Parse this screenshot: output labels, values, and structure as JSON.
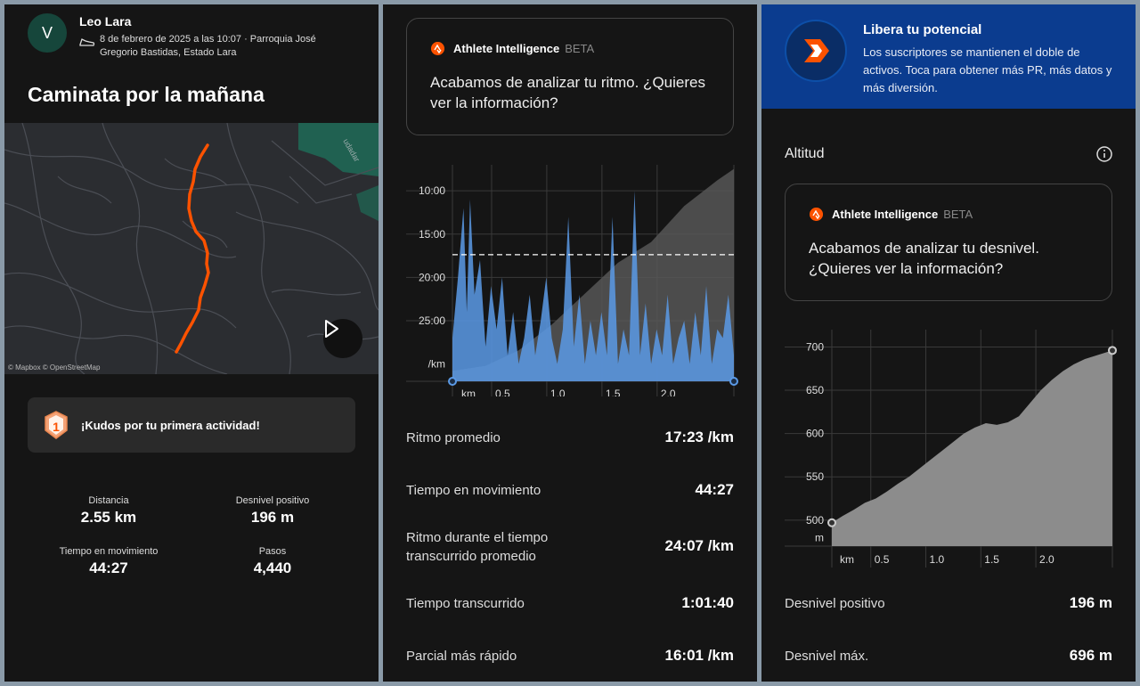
{
  "activity": {
    "avatar_initial": "V",
    "user_name": "Leo Lara",
    "meta": "8 de febrero de 2025 a las 10:07 · Parroquia José Gregorio Bastidas, Estado Lara",
    "title": "Caminata por la mañana",
    "map_attribution": "© Mapbox © OpenStreetMap",
    "map_street_label": "udadar",
    "kudos": "¡Kudos por tu primera actividad!",
    "kudos_badge_number": "1",
    "stats": [
      {
        "label": "Distancia",
        "value": "2.55 km"
      },
      {
        "label": "Desnivel positivo",
        "value": "196 m"
      },
      {
        "label": "Tiempo en movimiento",
        "value": "44:27"
      },
      {
        "label": "Pasos",
        "value": "4,440"
      }
    ]
  },
  "pace": {
    "ai_name": "Athlete Intelligence",
    "ai_beta": "BETA",
    "ai_message": "Acabamos de analizar tu ritmo. ¿Quieres ver la información?",
    "rows": [
      {
        "label": "Ritmo promedio",
        "value": "17:23 /km"
      },
      {
        "label": "Tiempo en movimiento",
        "value": "44:27"
      },
      {
        "label": "Ritmo durante el tiempo transcurrido promedio",
        "value": "24:07 /km"
      },
      {
        "label": "Tiempo transcurrido",
        "value": "1:01:40"
      },
      {
        "label": "Parcial más rápido",
        "value": "16:01 /km"
      }
    ]
  },
  "elevation": {
    "promo_title": "Libera tu potencial",
    "promo_text": "Los suscriptores se mantienen el doble de activos. Toca para obtener más PR, más datos y más diversión.",
    "section_title": "Altitud",
    "ai_name": "Athlete Intelligence",
    "ai_beta": "BETA",
    "ai_message": "Acabamos de analizar tu desnivel. ¿Quieres ver la información?",
    "rows": [
      {
        "label": "Desnivel positivo",
        "value": "196 m"
      },
      {
        "label": "Desnivel máx.",
        "value": "696 m"
      }
    ]
  },
  "colors": {
    "accent": "#fc5200",
    "pace_fill": "#5b9ae6",
    "elev_fill": "#8c8c8c",
    "promo_bg": "#0b3c8f"
  },
  "chart_data": [
    {
      "type": "area",
      "x_ticks": [
        "km",
        "0.5",
        "1.0",
        "1.5",
        "2.0"
      ],
      "y_ticks": [
        "10:00",
        "15:00",
        "20:00",
        "25:00",
        "/km"
      ],
      "x_range": [
        0,
        2.55
      ],
      "y_range_min_per_km": [
        7,
        32
      ],
      "average_pace_min_per_km": 17.38,
      "series": [
        {
          "x": [
            0,
            0.05,
            0.1,
            0.13,
            0.16,
            0.2,
            0.25,
            0.3,
            0.35,
            0.4,
            0.45,
            0.5,
            0.55,
            0.6,
            0.65,
            0.7,
            0.75,
            0.8,
            0.85,
            0.9,
            0.95,
            1.0,
            1.05,
            1.1,
            1.15,
            1.2,
            1.25,
            1.3,
            1.35,
            1.4,
            1.45,
            1.5,
            1.55,
            1.6,
            1.65,
            1.7,
            1.75,
            1.8,
            1.85,
            1.9,
            1.95,
            2.0,
            2.05,
            2.1,
            2.15,
            2.2,
            2.25,
            2.3,
            2.35,
            2.4,
            2.45,
            2.5,
            2.55
          ],
          "pace": [
            27,
            20,
            12,
            24,
            11,
            22,
            18,
            28,
            21,
            26,
            20,
            29,
            24,
            30,
            27,
            22,
            29,
            25,
            20,
            27,
            30,
            26,
            13,
            28,
            22,
            30,
            25,
            29,
            24,
            29,
            13,
            30,
            26,
            29,
            10,
            29,
            23,
            30,
            26,
            29,
            22,
            30,
            27,
            25,
            30,
            24,
            29,
            21,
            30,
            26,
            27,
            22,
            29
          ]
        },
        {
          "x": [
            0,
            0.3,
            0.6,
            0.9,
            1.2,
            1.5,
            1.8,
            2.1,
            2.4,
            2.55
          ],
          "elevation_m": [
            500,
            505,
            520,
            545,
            575,
            605,
            625,
            660,
            685,
            696
          ]
        }
      ]
    },
    {
      "type": "area",
      "x_ticks": [
        "km",
        "0.5",
        "1.0",
        "1.5",
        "2.0"
      ],
      "y_ticks": [
        "700",
        "650",
        "600",
        "550",
        "500",
        "m"
      ],
      "x_range": [
        0,
        2.55
      ],
      "ylim": [
        470,
        720
      ],
      "series": [
        {
          "x": [
            0,
            0.1,
            0.2,
            0.3,
            0.4,
            0.5,
            0.6,
            0.7,
            0.8,
            0.9,
            1.0,
            1.1,
            1.2,
            1.3,
            1.4,
            1.5,
            1.6,
            1.7,
            1.8,
            1.9,
            2.0,
            2.1,
            2.2,
            2.3,
            2.4,
            2.5,
            2.55
          ],
          "y": [
            497,
            505,
            512,
            520,
            525,
            533,
            542,
            550,
            560,
            570,
            580,
            590,
            600,
            607,
            612,
            610,
            613,
            620,
            635,
            650,
            662,
            672,
            680,
            686,
            690,
            694,
            696
          ]
        }
      ]
    }
  ]
}
